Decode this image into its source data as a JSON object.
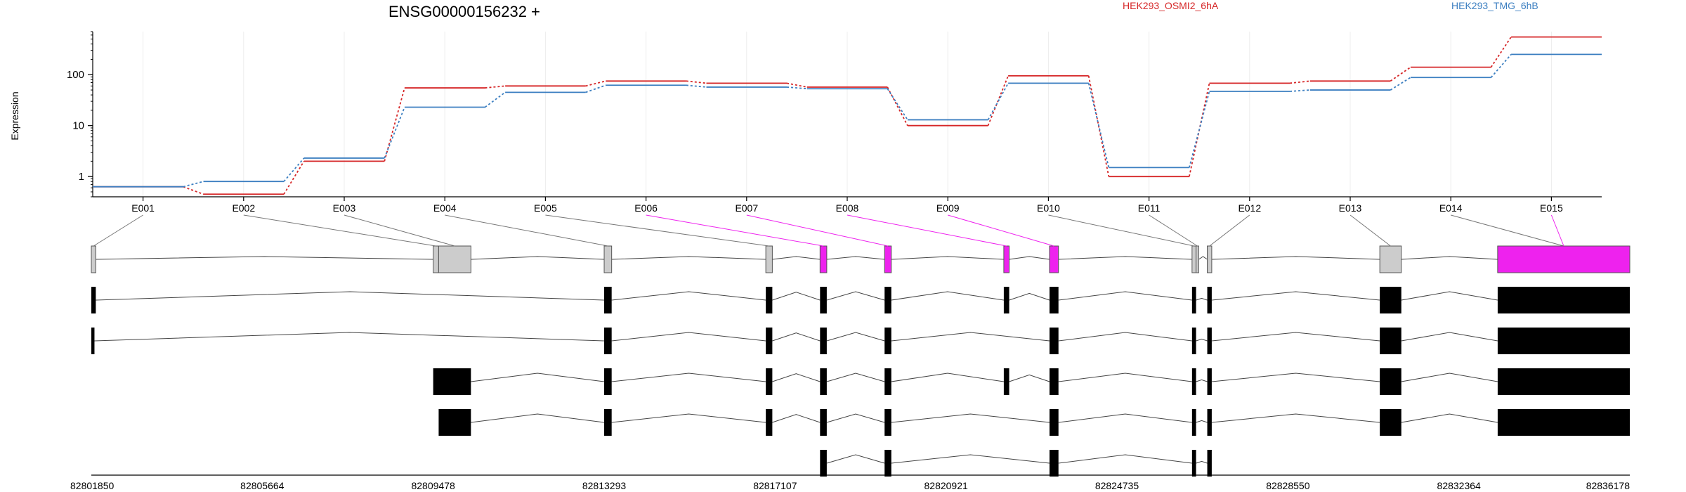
{
  "chart_data": {
    "type": "line",
    "title": "ENSG00000156232 +",
    "ylabel": "Expression",
    "xlabel": "",
    "y_scale": "log",
    "y_ticks": [
      1,
      10,
      100
    ],
    "y_tick_labels": [
      "1",
      "10",
      "100"
    ],
    "ylim": [
      0.4,
      700
    ],
    "grid": "vertical, light, at exon centers",
    "legend_position": "top",
    "categories": [
      "E001",
      "E002",
      "E003",
      "E004",
      "E005",
      "E006",
      "E007",
      "E008",
      "E009",
      "E010",
      "E011",
      "E012",
      "E013",
      "E014",
      "E015"
    ],
    "series": [
      {
        "name": "HEK293_OSMI2_6hA",
        "color": "#d62728",
        "values": [
          0.63,
          0.45,
          2.0,
          55,
          60,
          75,
          68,
          57,
          10,
          95,
          1.0,
          68,
          75,
          140,
          550
        ]
      },
      {
        "name": "HEK293_TMG_6hB",
        "color": "#3c7fc1",
        "values": [
          0.63,
          0.8,
          2.3,
          23,
          45,
          62,
          57,
          53,
          13,
          68,
          1.5,
          47,
          50,
          88,
          250
        ]
      }
    ],
    "highlight_color": "#ee22ee",
    "highlighted_exons": [
      "E006",
      "E007",
      "E008",
      "E009",
      "E015"
    ],
    "genomic_axis": {
      "ticks": [
        82801850,
        82805664,
        82809478,
        82813293,
        82817107,
        82820921,
        82824735,
        82828550,
        82832364,
        82836178
      ],
      "tick_labels": [
        "82801850",
        "82805664",
        "82809478",
        "82813293",
        "82817107",
        "82820921",
        "82824735",
        "82828550",
        "82832364",
        "82836178"
      ],
      "range": [
        82801850,
        82836178
      ]
    },
    "exon_model": [
      {
        "id": "E001",
        "start": 82801850,
        "end": 82801950
      },
      {
        "id": "E002",
        "start": 82809478,
        "end": 82809600
      },
      {
        "id": "E003",
        "start": 82809600,
        "end": 82810320
      },
      {
        "id": "E004",
        "start": 82813293,
        "end": 82813460
      },
      {
        "id": "E005",
        "start": 82816900,
        "end": 82817045
      },
      {
        "id": "E006",
        "start": 82818110,
        "end": 82818260
      },
      {
        "id": "E007",
        "start": 82819550,
        "end": 82819700
      },
      {
        "id": "E008",
        "start": 82822210,
        "end": 82822330
      },
      {
        "id": "E009",
        "start": 82823230,
        "end": 82823430
      },
      {
        "id": "E010",
        "start": 82826410,
        "end": 82826500
      },
      {
        "id": "E011",
        "start": 82826500,
        "end": 82826560
      },
      {
        "id": "E012",
        "start": 82826750,
        "end": 82826850
      },
      {
        "id": "E013",
        "start": 82830600,
        "end": 82831080
      },
      {
        "id": "E014",
        "start": 82833230,
        "end": 82836178
      },
      {
        "id": "E015",
        "start": 82833230,
        "end": 82836178
      }
    ],
    "transcripts": [
      {
        "exons": [
          [
            82801850,
            82801950
          ],
          [
            82813293,
            82813460
          ],
          [
            82816900,
            82817045
          ],
          [
            82818110,
            82818260
          ],
          [
            82819550,
            82819700
          ],
          [
            82822210,
            82822330
          ],
          [
            82823230,
            82823430
          ],
          [
            82826410,
            82826500
          ],
          [
            82826750,
            82826850
          ],
          [
            82830600,
            82831080
          ],
          [
            82833230,
            82836178
          ]
        ]
      },
      {
        "exons": [
          [
            82801850,
            82801920
          ],
          [
            82813293,
            82813460
          ],
          [
            82816900,
            82817045
          ],
          [
            82818110,
            82818260
          ],
          [
            82819550,
            82819700
          ],
          [
            82823230,
            82823430
          ],
          [
            82826410,
            82826500
          ],
          [
            82826750,
            82826850
          ],
          [
            82830600,
            82831080
          ],
          [
            82833230,
            82836178
          ]
        ]
      },
      {
        "exons": [
          [
            82809478,
            82810320
          ],
          [
            82813293,
            82813460
          ],
          [
            82816900,
            82817045
          ],
          [
            82818110,
            82818260
          ],
          [
            82819550,
            82819700
          ],
          [
            82822210,
            82822330
          ],
          [
            82823230,
            82823430
          ],
          [
            82826410,
            82826500
          ],
          [
            82826750,
            82826850
          ],
          [
            82830600,
            82831080
          ],
          [
            82833230,
            82836178
          ]
        ]
      },
      {
        "exons": [
          [
            82809600,
            82810320
          ],
          [
            82813293,
            82813460
          ],
          [
            82816900,
            82817045
          ],
          [
            82818110,
            82818260
          ],
          [
            82819550,
            82819700
          ],
          [
            82823230,
            82823430
          ],
          [
            82826410,
            82826500
          ],
          [
            82826750,
            82826850
          ],
          [
            82830600,
            82831080
          ],
          [
            82833230,
            82836178
          ]
        ]
      },
      {
        "exons": [
          [
            82818110,
            82818260
          ],
          [
            82819550,
            82819700
          ],
          [
            82823230,
            82823430
          ],
          [
            82826410,
            82826500
          ],
          [
            82826750,
            82826850
          ]
        ]
      }
    ]
  }
}
